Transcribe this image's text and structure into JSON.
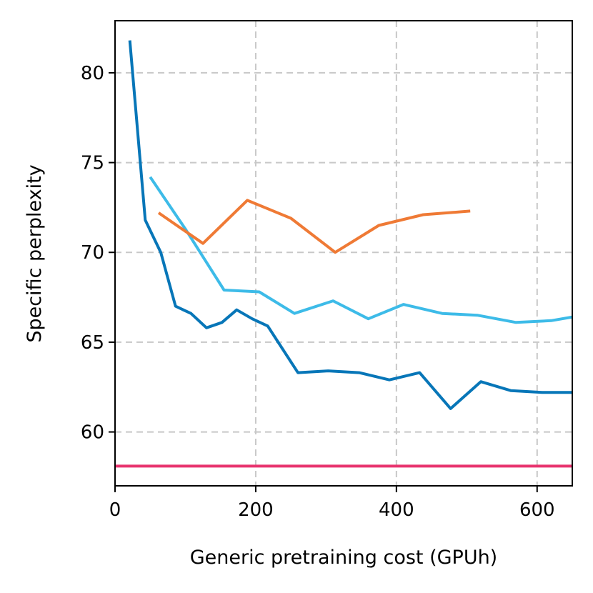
{
  "chart_data": {
    "type": "line",
    "title": "",
    "xlabel": "Generic pretraining cost (GPUh)",
    "ylabel": "Specific perplexity",
    "xlim": [
      0,
      650
    ],
    "ylim": [
      57,
      82.9
    ],
    "grid": true,
    "x_ticks": [
      {
        "value": 0,
        "label": "0"
      },
      {
        "value": 200,
        "label": "200"
      },
      {
        "value": 400,
        "label": "400"
      },
      {
        "value": 600,
        "label": "600"
      }
    ],
    "y_ticks": [
      {
        "value": 60,
        "label": "60"
      },
      {
        "value": 65,
        "label": "65"
      },
      {
        "value": 70,
        "label": "70"
      },
      {
        "value": 75,
        "label": "75"
      },
      {
        "value": 80,
        "label": "80"
      }
    ],
    "series": [
      {
        "name": "series-dark-blue",
        "color": "#0776b8",
        "x": [
          21,
          43,
          65,
          86,
          108,
          130,
          152,
          173,
          195,
          217,
          260,
          303,
          347,
          390,
          433,
          477,
          520,
          563,
          607,
          650
        ],
        "y": [
          81.8,
          71.8,
          70.0,
          67.0,
          66.6,
          65.8,
          66.1,
          66.8,
          66.3,
          65.9,
          63.3,
          63.4,
          63.3,
          62.9,
          63.3,
          61.3,
          62.8,
          62.3,
          62.2,
          62.2
        ]
      },
      {
        "name": "series-light-blue",
        "color": "#3dbbe8",
        "x": [
          50,
          100,
          155,
          205,
          255,
          310,
          360,
          410,
          465,
          515,
          570,
          620,
          650
        ],
        "y": [
          74.2,
          71.3,
          67.9,
          67.8,
          66.6,
          67.3,
          66.3,
          67.1,
          66.6,
          66.5,
          66.1,
          66.2,
          66.4
        ]
      },
      {
        "name": "series-orange",
        "color": "#ef7a35",
        "x": [
          62,
          125,
          188,
          250,
          313,
          375,
          438,
          505
        ],
        "y": [
          72.2,
          70.5,
          72.9,
          71.9,
          70.0,
          71.5,
          72.1,
          72.3
        ]
      },
      {
        "name": "series-pink-baseline",
        "color": "#e8336e",
        "x": [
          0,
          650
        ],
        "y": [
          58.1,
          58.1
        ]
      }
    ]
  }
}
